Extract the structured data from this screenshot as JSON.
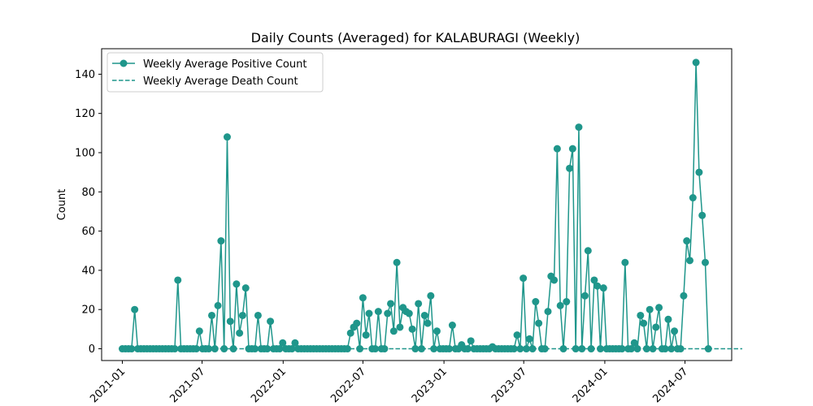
{
  "chart_data": {
    "type": "line",
    "title": "Daily Counts (Averaged) for KALABURAGI (Weekly)",
    "xlabel": "",
    "ylabel": "Count",
    "ylim": [
      -6,
      153
    ],
    "xlim": [
      "2020-11-15",
      "2024-10-15"
    ],
    "yticks": [
      0,
      20,
      40,
      60,
      80,
      100,
      120,
      140
    ],
    "xticks": [
      {
        "date": "2021-01-01",
        "label": "2021-01"
      },
      {
        "date": "2021-07-01",
        "label": "2021-07"
      },
      {
        "date": "2022-01-01",
        "label": "2022-01"
      },
      {
        "date": "2022-07-01",
        "label": "2022-07"
      },
      {
        "date": "2023-01-01",
        "label": "2023-01"
      },
      {
        "date": "2023-07-01",
        "label": "2023-07"
      },
      {
        "date": "2024-01-01",
        "label": "2024-01"
      },
      {
        "date": "2024-07-01",
        "label": "2024-07"
      }
    ],
    "grid": false,
    "legend_position": "top-left",
    "x_start": "2021-01-01",
    "x_step_days": 7,
    "series": [
      {
        "name": "Weekly Average Positive Count",
        "color": "#1f968b",
        "style": "solid",
        "marker": "circle",
        "values": [
          0,
          0,
          0,
          0,
          20,
          0,
          0,
          0,
          0,
          0,
          0,
          0,
          0,
          0,
          0,
          0,
          0,
          0,
          35,
          0,
          0,
          0,
          0,
          0,
          0,
          9,
          0,
          0,
          0,
          17,
          0,
          22,
          55,
          0,
          108,
          14,
          0,
          33,
          8,
          17,
          31,
          0,
          0,
          0,
          17,
          0,
          0,
          0,
          14,
          0,
          0,
          0,
          3,
          0,
          0,
          0,
          3,
          0,
          0,
          0,
          0,
          0,
          0,
          0,
          0,
          0,
          0,
          0,
          0,
          0,
          0,
          0,
          0,
          0,
          8,
          11,
          13,
          0,
          26,
          7,
          18,
          0,
          0,
          19,
          0,
          0,
          18,
          23,
          9,
          44,
          11,
          21,
          19,
          18,
          10,
          0,
          23,
          0,
          17,
          13,
          27,
          0,
          9,
          0,
          0,
          0,
          0,
          12,
          0,
          0,
          2,
          0,
          0,
          4,
          0,
          0,
          0,
          0,
          0,
          0,
          1,
          0,
          0,
          0,
          0,
          0,
          0,
          0,
          7,
          0,
          36,
          0,
          5,
          0,
          24,
          13,
          0,
          0,
          19,
          37,
          35,
          102,
          22,
          0,
          24,
          92,
          102,
          0,
          113,
          0,
          27,
          50,
          0,
          35,
          32,
          0,
          31,
          0,
          0,
          0,
          0,
          0,
          0,
          44,
          0,
          0,
          3,
          0,
          17,
          13,
          0,
          20,
          0,
          11,
          21,
          0,
          0,
          15,
          0,
          9,
          0,
          0,
          27,
          55,
          45,
          77,
          146,
          90,
          68,
          44,
          0
        ]
      },
      {
        "name": "Weekly Average Death Count",
        "color": "#1f968b",
        "style": "dashed",
        "marker": "none",
        "values": [
          0,
          0,
          0,
          0,
          0,
          0,
          0,
          0,
          0,
          0,
          0,
          0,
          0,
          0,
          0,
          0,
          0,
          0,
          0,
          0,
          0,
          0,
          0,
          0,
          0,
          0,
          0,
          0,
          0,
          0,
          0,
          0,
          0,
          0,
          0,
          0,
          0,
          0,
          0,
          0,
          0,
          0,
          0,
          0,
          0,
          0,
          0,
          0,
          0,
          0,
          0,
          0,
          0,
          0,
          0,
          0,
          0,
          0,
          0,
          0,
          0,
          0,
          0,
          0,
          0,
          0,
          0,
          0,
          0,
          0,
          0,
          0,
          0,
          0,
          0,
          0,
          0,
          0,
          0,
          0,
          0,
          0,
          0,
          0,
          0,
          0,
          0,
          0,
          0,
          0,
          0,
          0,
          0,
          0,
          0,
          0,
          0,
          0,
          0,
          0,
          0,
          0,
          0,
          0,
          0,
          0,
          0,
          0,
          0,
          0,
          0,
          0,
          0,
          0,
          0,
          0,
          0,
          0,
          0,
          0,
          0,
          0,
          0,
          0,
          0,
          0,
          0,
          0,
          0,
          0,
          0,
          0,
          0,
          0,
          0,
          0,
          0,
          0,
          0,
          0,
          0,
          0,
          0,
          0,
          0,
          0,
          0,
          0,
          0,
          0,
          0,
          0,
          0,
          0,
          0,
          0,
          0,
          0,
          0,
          0,
          0,
          0,
          0,
          0,
          0,
          0,
          0,
          0,
          0,
          0,
          0,
          0,
          0,
          0,
          0,
          0,
          0,
          0,
          0,
          0,
          0,
          0,
          0,
          0,
          0,
          0,
          0,
          0,
          0,
          0,
          0,
          0,
          0,
          0,
          0,
          0,
          0,
          0,
          0,
          0,
          0,
          0
        ]
      }
    ]
  }
}
